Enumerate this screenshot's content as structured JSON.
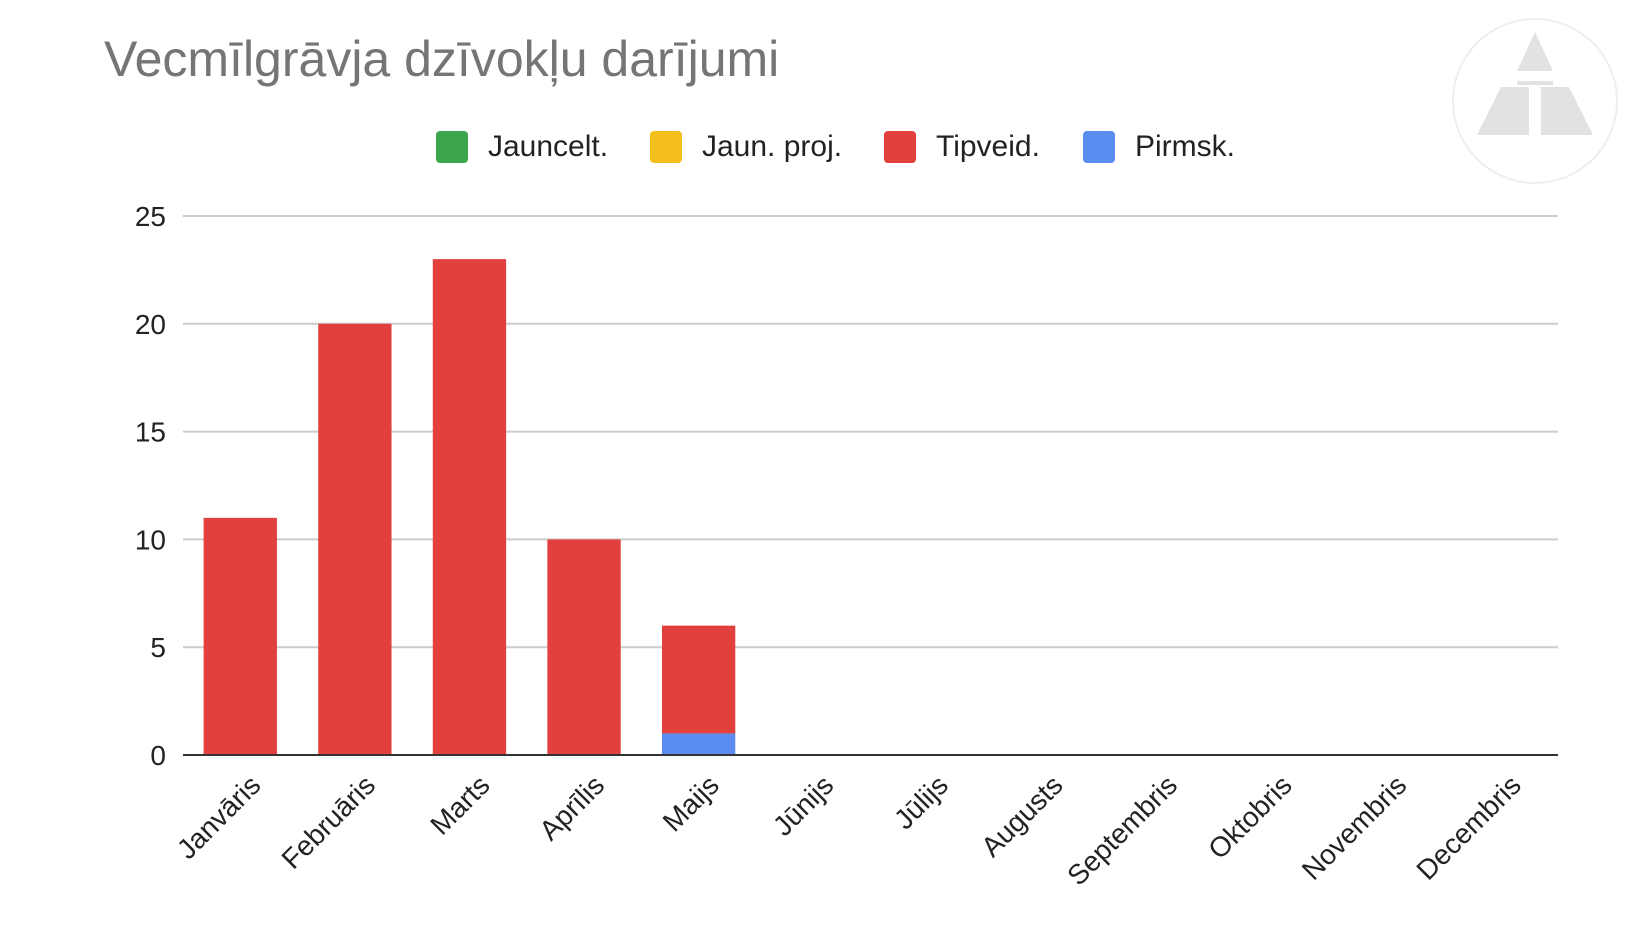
{
  "chart_data": {
    "type": "bar",
    "stacked": true,
    "title": "Vecmīlgrāvja dzīvokļu darījumi",
    "xlabel": "",
    "ylabel": "",
    "categories": [
      "Janvāris",
      "Februāris",
      "Marts",
      "Aprīlis",
      "Maijs",
      "Jūnijs",
      "Jūlijs",
      "Augusts",
      "Septembris",
      "Oktobris",
      "Novembris",
      "Decembris"
    ],
    "series": [
      {
        "name": "Jauncelt.",
        "color": "#3ba64e",
        "values": [
          0,
          0,
          0,
          0,
          0,
          0,
          0,
          0,
          0,
          0,
          0,
          0
        ]
      },
      {
        "name": "Jaun. proj.",
        "color": "#f4bf1d",
        "values": [
          0,
          0,
          0,
          0,
          0,
          0,
          0,
          0,
          0,
          0,
          0,
          0
        ]
      },
      {
        "name": "Tipveid.",
        "color": "#e1403c",
        "values": [
          11,
          20,
          23,
          10,
          5,
          0,
          0,
          0,
          0,
          0,
          0,
          0
        ]
      },
      {
        "name": "Pirmsk.",
        "color": "#5b8cf0",
        "values": [
          0,
          0,
          0,
          0,
          1,
          0,
          0,
          0,
          0,
          0,
          0,
          0
        ]
      }
    ],
    "ylim": [
      0,
      25
    ],
    "yticks": [
      0,
      5,
      10,
      15,
      20,
      25
    ],
    "grid": true,
    "legend_position": "top"
  },
  "logo": {
    "name": "triangle-logo-icon"
  }
}
